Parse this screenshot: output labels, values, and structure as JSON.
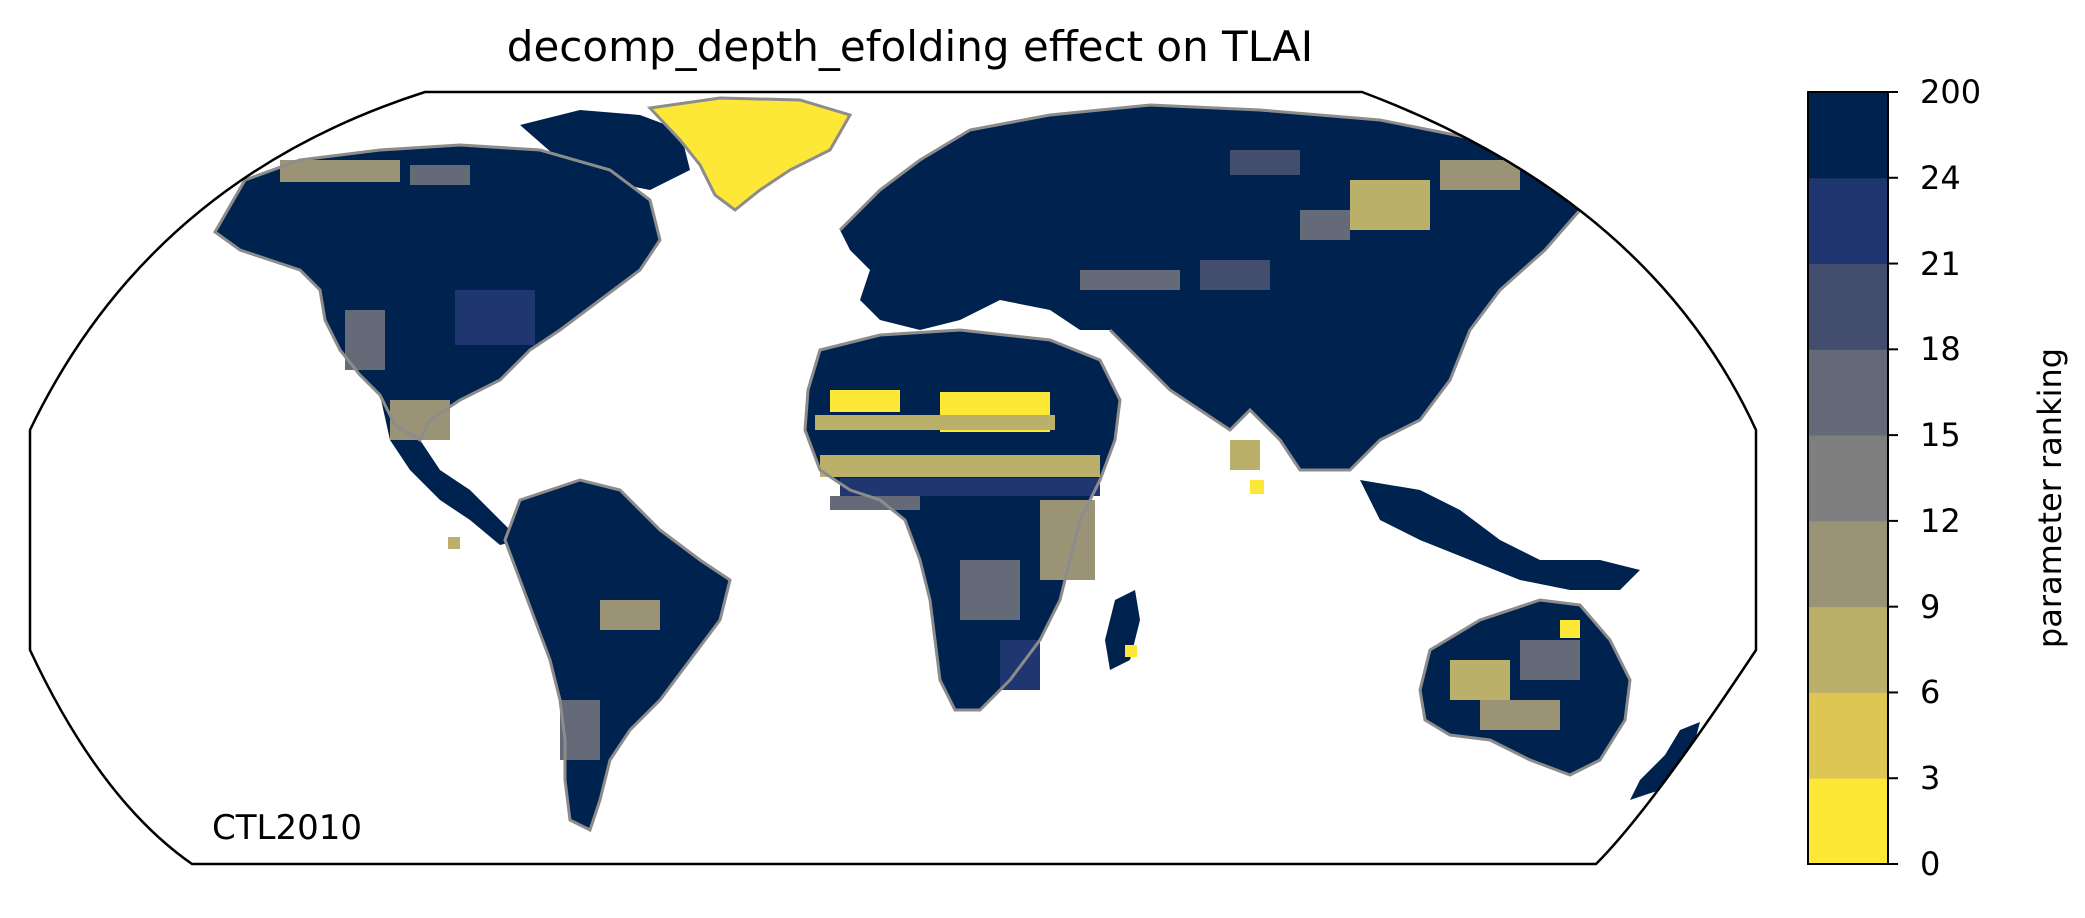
{
  "title": "decomp_depth_efolding effect on TLAI",
  "run_label": "CTL2010",
  "colorbar": {
    "label": "parameter ranking",
    "ticks": [
      "0",
      "3",
      "6",
      "9",
      "12",
      "15",
      "18",
      "21",
      "24",
      "200"
    ],
    "colors": [
      "#fde737",
      "#ddc752",
      "#bab06a",
      "#9a9376",
      "#7f7f7f",
      "#646a77",
      "#434d6e",
      "#1f3670",
      "#00224e"
    ]
  },
  "colors": {
    "land_dominant": "#00224e",
    "coastline": "#8c8c8c",
    "frame": "#000000"
  },
  "chart_data": {
    "type": "heatmap",
    "projection": "Robinson",
    "variable": "TLAI",
    "parameter": "decomp_depth_efolding",
    "colorbar_label": "parameter ranking",
    "bins": [
      0,
      3,
      6,
      9,
      12,
      15,
      18,
      21,
      24,
      200
    ],
    "regions": [
      {
        "region": "Greenland",
        "ranking_bin": "0-3"
      },
      {
        "region": "Sahara",
        "ranking_bin": "0-12"
      },
      {
        "region": "Sahel",
        "ranking_bin": "9-24"
      },
      {
        "region": "North America",
        "ranking_bin": "24-200"
      },
      {
        "region": "South America",
        "ranking_bin": "24-200"
      },
      {
        "region": "Eurasia",
        "ranking_bin": "24-200"
      },
      {
        "region": "Siberia",
        "ranking_bin": "9-200"
      },
      {
        "region": "Australia",
        "ranking_bin": "9-200"
      },
      {
        "region": "Central Africa",
        "ranking_bin": "18-200"
      }
    ]
  }
}
